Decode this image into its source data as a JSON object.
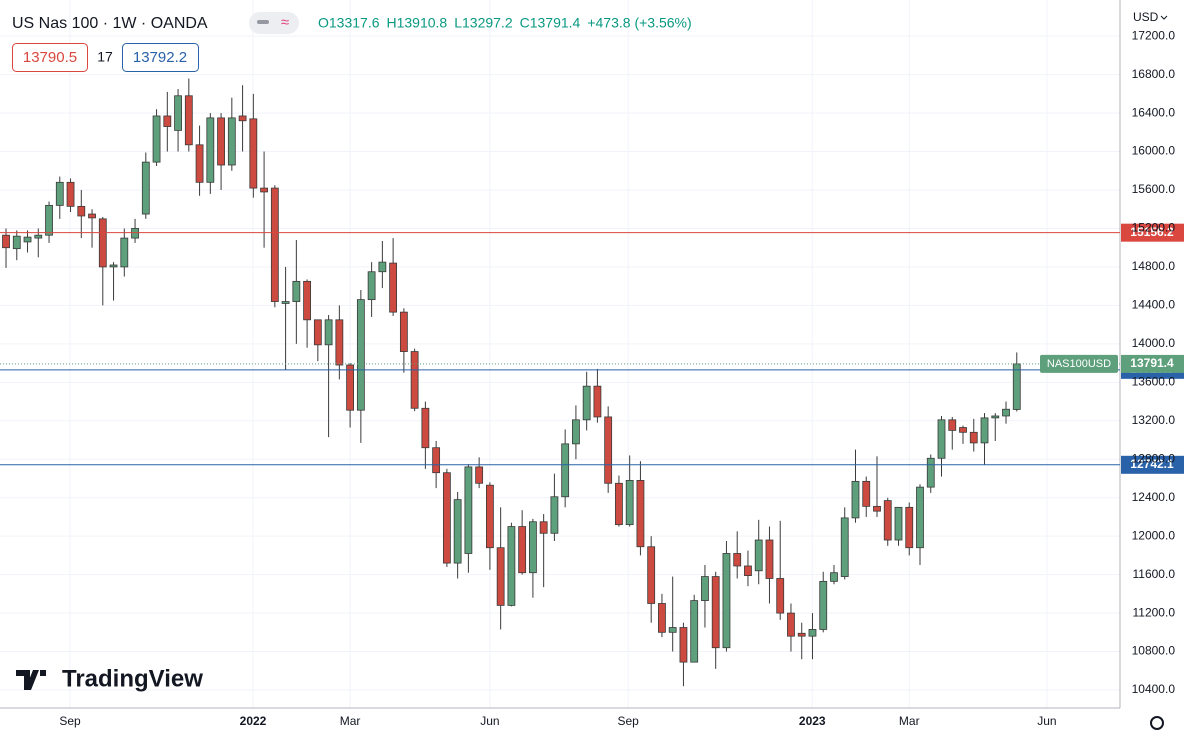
{
  "chart_data": {
    "type": "candlestick",
    "title": "US Nas 100 · 1W · OANDA",
    "ohlc_labels": [
      "O13317.6",
      "H13910.8",
      "L13297.2",
      "C13791.4"
    ],
    "change": "+473.8 (+3.56%)",
    "bid": "13790.5",
    "spread": "17",
    "ask": "13792.2",
    "currency": "USD",
    "brand": "TradingView",
    "up_color": "#5e9f7c",
    "down_color": "#cc4a40",
    "open": [
      15130,
      14990,
      15060,
      15100,
      15130,
      15440,
      15680,
      15430,
      15350,
      15300,
      14800,
      14800,
      15100,
      15350,
      15890,
      16370,
      16220,
      16580,
      16070,
      15680,
      16350,
      15860,
      16370,
      16340,
      15620,
      15620,
      14420,
      14440,
      14650,
      14250,
      13990,
      14250,
      13780,
      13310,
      14460,
      14750,
      14840,
      14330,
      13920,
      13330,
      12920,
      12660,
      11720,
      11820,
      12720,
      12530,
      11880,
      11280,
      12100,
      11620,
      12150,
      12030,
      12410,
      12960,
      13210,
      13560,
      13240,
      12550,
      12120,
      12580,
      11890,
      11300,
      11000,
      11050,
      10690,
      11330,
      11580,
      10840,
      11820,
      11690,
      11640,
      11960,
      11560,
      11200,
      10990,
      10960,
      11030,
      11530,
      11580,
      12190,
      12570,
      12310,
      12370,
      11960,
      12300,
      11880,
      12510,
      12810,
      13210,
      13130,
      13080,
      12970,
      13230,
      13250,
      13317.6
    ],
    "high": [
      15200,
      15180,
      15180,
      15200,
      15480,
      15740,
      15720,
      15600,
      15400,
      15320,
      14850,
      15200,
      15300,
      15990,
      16440,
      16620,
      16650,
      16760,
      16270,
      16400,
      16400,
      16560,
      16690,
      16600,
      16000,
      15650,
      14800,
      15080,
      14670,
      14250,
      14300,
      14400,
      13800,
      14560,
      14850,
      15070,
      15100,
      14370,
      13950,
      13400,
      12990,
      12700,
      12460,
      12750,
      12820,
      12560,
      12300,
      12140,
      12270,
      12180,
      12230,
      12650,
      13110,
      13360,
      13710,
      13740,
      13350,
      12630,
      12840,
      12780,
      12000,
      11400,
      11580,
      11100,
      11390,
      11700,
      11630,
      11950,
      12050,
      11850,
      12170,
      12100,
      12160,
      11300,
      11100,
      11200,
      11630,
      11700,
      12300,
      12900,
      12620,
      12830,
      12400,
      12300,
      12350,
      12540,
      12850,
      13250,
      13240,
      13150,
      13220,
      13280,
      13280,
      13400,
      13910.8
    ],
    "low": [
      14790,
      14870,
      14950,
      14900,
      15050,
      15300,
      15370,
      15100,
      15000,
      14400,
      14450,
      14700,
      15050,
      15300,
      15850,
      16000,
      16000,
      16000,
      15540,
      15560,
      15600,
      15800,
      16000,
      15520,
      15000,
      14380,
      13730,
      14000,
      13960,
      13820,
      13030,
      13630,
      13130,
      12970,
      14280,
      14580,
      14290,
      13700,
      13300,
      12700,
      12500,
      11680,
      11560,
      11620,
      12500,
      11650,
      11030,
      11270,
      11600,
      11360,
      11470,
      11950,
      12300,
      12800,
      13100,
      13180,
      12450,
      12100,
      12100,
      11800,
      11100,
      10950,
      10800,
      10440,
      10690,
      11050,
      10620,
      10800,
      11560,
      11480,
      11500,
      11300,
      11130,
      10800,
      10720,
      10720,
      11000,
      11500,
      11550,
      12140,
      12200,
      12200,
      11900,
      11900,
      11800,
      11700,
      12450,
      12620,
      12900,
      12960,
      12880,
      12740,
      12990,
      13170,
      13297.2
    ],
    "close": [
      15000,
      15120,
      15110,
      15130,
      15440,
      15680,
      15430,
      15330,
      15310,
      14800,
      14820,
      15100,
      15200,
      15890,
      16370,
      16260,
      16580,
      16070,
      15680,
      16350,
      15860,
      16350,
      16320,
      15620,
      15580,
      14440,
      14440,
      14650,
      14250,
      13990,
      14250,
      13780,
      13310,
      14460,
      14750,
      14850,
      14330,
      13920,
      13330,
      12920,
      12660,
      11720,
      12380,
      12720,
      12550,
      11880,
      11280,
      12100,
      11620,
      12150,
      12030,
      12410,
      12960,
      13210,
      13560,
      13240,
      12550,
      12120,
      12580,
      11890,
      11300,
      11000,
      11050,
      10690,
      11330,
      11580,
      10840,
      11820,
      11690,
      11590,
      11960,
      11560,
      11200,
      10960,
      10960,
      11030,
      11530,
      11620,
      12190,
      12570,
      12310,
      12260,
      11960,
      12300,
      11880,
      12510,
      12810,
      13210,
      13100,
      13080,
      12970,
      13230,
      13250,
      13320,
      13791.4
    ],
    "xlim": [
      -0.56,
      103.6
    ],
    "xticks": [
      {
        "value": 5.95,
        "label": "Sep"
      },
      {
        "value": 22.97,
        "label": "2022"
      },
      {
        "value": 32,
        "label": "Mar"
      },
      {
        "value": 45,
        "label": "Jun"
      },
      {
        "value": 57.86,
        "label": "Sep"
      },
      {
        "value": 74.98,
        "label": "2023"
      },
      {
        "value": 84,
        "label": "Mar"
      },
      {
        "value": 96.8,
        "label": "Jun"
      }
    ],
    "ylim": [
      10213,
      17576
    ],
    "yticks": [
      {
        "value": 10400,
        "label": "10400.0"
      },
      {
        "value": 10800,
        "label": "10800.0"
      },
      {
        "value": 11200,
        "label": "11200.0"
      },
      {
        "value": 11600,
        "label": "11600.0"
      },
      {
        "value": 12000,
        "label": "12000.0"
      },
      {
        "value": 12400,
        "label": "12400.0"
      },
      {
        "value": 12800,
        "label": "12800.0"
      },
      {
        "value": 13200,
        "label": "13200.0"
      },
      {
        "value": 13600,
        "label": "13600.0"
      },
      {
        "value": 14000,
        "label": "14000.0"
      },
      {
        "value": 14400,
        "label": "14400.0"
      },
      {
        "value": 14800,
        "label": "14800.0"
      },
      {
        "value": 15200,
        "label": "15200.0"
      },
      {
        "value": 15600,
        "label": "15600.0"
      },
      {
        "value": 16000,
        "label": "16000.0"
      },
      {
        "value": 16400,
        "label": "16400.0"
      },
      {
        "value": 16800,
        "label": "16800.0"
      },
      {
        "value": 17200,
        "label": "17200.0"
      }
    ],
    "grid": true,
    "hlines": [
      {
        "value": 15156.2,
        "color": "#d9473f"
      },
      {
        "value": 13729.8,
        "color": "#2962a8"
      },
      {
        "value": 12742.1,
        "color": "#2962a8"
      }
    ],
    "last_price": {
      "name": "NAS100USD",
      "value": 13791.4,
      "color": "#5e9f7c"
    }
  }
}
